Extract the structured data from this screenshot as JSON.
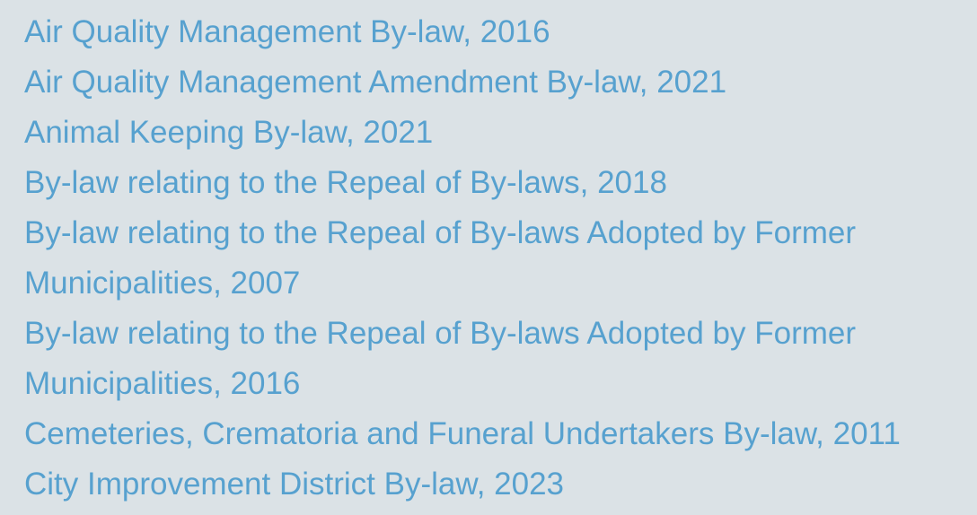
{
  "bylaws": {
    "items": [
      {
        "label": "Air Quality Management By-law, 2016"
      },
      {
        "label": "Air Quality Management Amendment By-law, 2021"
      },
      {
        "label": "Animal Keeping By-law, 2021"
      },
      {
        "label": "By-law relating to the Repeal of By-laws, 2018"
      },
      {
        "label": "By-law relating to the Repeal of By-laws Adopted by Former Municipalities, 2007"
      },
      {
        "label": "By-law relating to the Repeal of By-laws Adopted by Former Municipalities, 2016"
      },
      {
        "label": "Cemeteries, Crematoria and Funeral Undertakers By-law, 2011"
      },
      {
        "label": "City Improvement District By-law, 2023"
      }
    ]
  },
  "colors": {
    "background": "#dbe2e6",
    "link": "#57a1cf"
  }
}
